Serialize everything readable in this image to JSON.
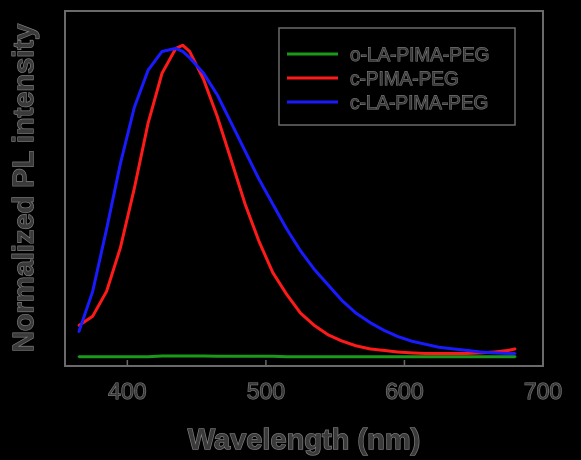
{
  "chart_data": {
    "type": "line",
    "xlabel": "Wavelength (nm)",
    "ylabel": "Normalized PL intensity",
    "xlim": [
      355,
      700
    ],
    "ylim": [
      -0.02,
      1.12
    ],
    "xticks": [
      400,
      500,
      600,
      700
    ],
    "yticks": [],
    "grid": false,
    "legend_position": "top-right",
    "x": [
      365,
      375,
      385,
      395,
      405,
      415,
      425,
      435,
      440,
      445,
      455,
      465,
      475,
      485,
      495,
      505,
      515,
      525,
      535,
      545,
      555,
      565,
      575,
      585,
      595,
      605,
      615,
      625,
      635,
      645,
      655,
      665,
      675,
      680
    ],
    "series": [
      {
        "name": "o-LA-PIMA-PEG",
        "color": "#1a9a1a",
        "values": [
          0.01,
          0.01,
          0.01,
          0.01,
          0.01,
          0.01,
          0.012,
          0.012,
          0.012,
          0.012,
          0.012,
          0.011,
          0.011,
          0.011,
          0.011,
          0.011,
          0.01,
          0.01,
          0.01,
          0.01,
          0.01,
          0.01,
          0.01,
          0.01,
          0.01,
          0.01,
          0.01,
          0.01,
          0.01,
          0.01,
          0.01,
          0.01,
          0.01,
          0.01
        ]
      },
      {
        "name": "c-PIMA-PEG",
        "color": "#ff1a1a",
        "values": [
          0.11,
          0.14,
          0.22,
          0.36,
          0.55,
          0.76,
          0.92,
          1.0,
          1.01,
          0.99,
          0.9,
          0.78,
          0.64,
          0.5,
          0.38,
          0.28,
          0.21,
          0.15,
          0.11,
          0.08,
          0.06,
          0.045,
          0.035,
          0.03,
          0.025,
          0.022,
          0.02,
          0.02,
          0.02,
          0.02,
          0.022,
          0.025,
          0.03,
          0.035
        ]
      },
      {
        "name": "c-LA-PIMA-PEG",
        "color": "#1a1aff",
        "values": [
          0.09,
          0.22,
          0.42,
          0.63,
          0.81,
          0.93,
          0.99,
          1.0,
          0.99,
          0.97,
          0.92,
          0.85,
          0.76,
          0.67,
          0.58,
          0.5,
          0.42,
          0.35,
          0.29,
          0.24,
          0.19,
          0.15,
          0.12,
          0.095,
          0.075,
          0.06,
          0.05,
          0.04,
          0.035,
          0.03,
          0.025,
          0.022,
          0.02,
          0.02
        ]
      }
    ]
  }
}
